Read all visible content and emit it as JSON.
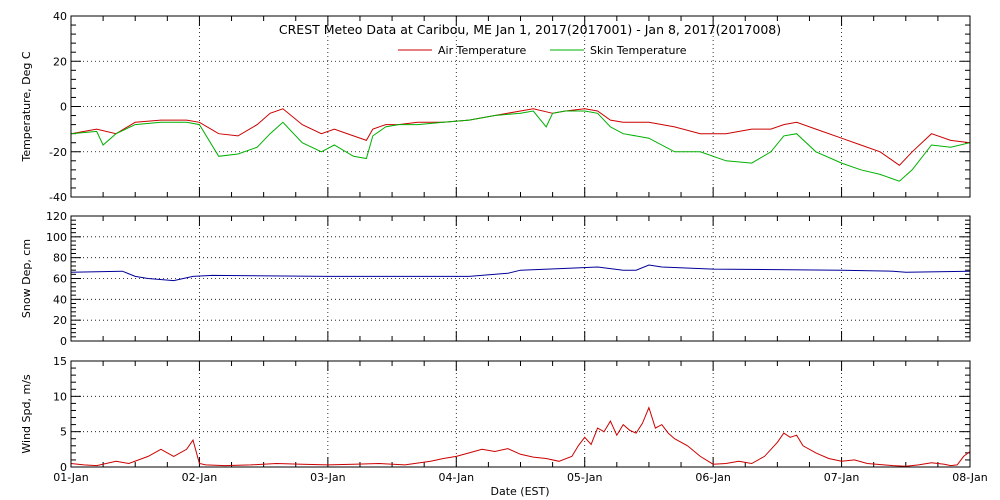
{
  "title": "CREST Meteo Data at Caribou, ME   Jan  1, 2017(2017001) - Jan  8, 2017(2017008)",
  "xlabel": "Date (EST)",
  "x_ticks": [
    "01-Jan",
    "02-Jan",
    "03-Jan",
    "04-Jan",
    "05-Jan",
    "06-Jan",
    "07-Jan",
    "08-Jan"
  ],
  "legend": [
    "Air Temperature",
    "Skin Temperature"
  ],
  "colors": {
    "air": "#cc0000",
    "skin": "#00b000",
    "snow": "#000099",
    "wind": "#cc0000"
  },
  "chart_data": [
    {
      "type": "line",
      "ylabel": "Temperature, Deg C",
      "x_unit": "day of Jan 2017",
      "xlim": [
        1,
        8
      ],
      "ylim": [
        -40,
        40
      ],
      "y_ticks": [
        -40,
        -20,
        0,
        20,
        40
      ],
      "grid": true,
      "legend_position": "top-center",
      "series": [
        {
          "name": "Air Temperature",
          "x": [
            1.0,
            1.2,
            1.35,
            1.5,
            1.7,
            1.9,
            2.0,
            2.15,
            2.3,
            2.45,
            2.55,
            2.65,
            2.8,
            2.95,
            3.05,
            3.2,
            3.3,
            3.35,
            3.45,
            3.55,
            3.7,
            3.9,
            4.1,
            4.3,
            4.5,
            4.6,
            4.75,
            4.85,
            5.0,
            5.1,
            5.2,
            5.3,
            5.5,
            5.7,
            5.9,
            6.1,
            6.3,
            6.45,
            6.55,
            6.65,
            6.8,
            7.0,
            7.15,
            7.3,
            7.45,
            7.55,
            7.7,
            7.85,
            8.0
          ],
          "y": [
            -12,
            -10,
            -12,
            -7,
            -6,
            -6,
            -7,
            -12,
            -13,
            -8,
            -3,
            -1,
            -8,
            -12,
            -10,
            -13,
            -15,
            -10,
            -8,
            -8,
            -7,
            -7,
            -6,
            -4,
            -2,
            -1,
            -3,
            -2,
            -1,
            -2,
            -6,
            -7,
            -7,
            -9,
            -12,
            -12,
            -10,
            -10,
            -8,
            -7,
            -10,
            -14,
            -17,
            -20,
            -26,
            -20,
            -12,
            -15,
            -16
          ]
        },
        {
          "name": "Skin Temperature",
          "x": [
            1.0,
            1.2,
            1.25,
            1.35,
            1.5,
            1.7,
            1.9,
            2.0,
            2.15,
            2.3,
            2.45,
            2.55,
            2.65,
            2.8,
            2.95,
            3.05,
            3.2,
            3.3,
            3.35,
            3.45,
            3.55,
            3.7,
            3.9,
            4.1,
            4.3,
            4.5,
            4.6,
            4.7,
            4.75,
            4.85,
            5.0,
            5.1,
            5.2,
            5.3,
            5.5,
            5.7,
            5.9,
            6.1,
            6.3,
            6.45,
            6.55,
            6.65,
            6.8,
            7.0,
            7.15,
            7.3,
            7.45,
            7.55,
            7.7,
            7.85,
            8.0
          ],
          "y": [
            -12,
            -11,
            -17,
            -12,
            -8,
            -7,
            -7,
            -8,
            -22,
            -21,
            -18,
            -12,
            -7,
            -16,
            -20,
            -17,
            -22,
            -23,
            -13,
            -9,
            -8,
            -8,
            -7,
            -6,
            -4,
            -3,
            -2,
            -9,
            -3,
            -2,
            -2,
            -3,
            -9,
            -12,
            -14,
            -20,
            -20,
            -24,
            -25,
            -20,
            -13,
            -12,
            -20,
            -25,
            -28,
            -30,
            -33,
            -28,
            -17,
            -18,
            -16
          ]
        }
      ]
    },
    {
      "type": "line",
      "ylabel": "Snow Dep, cm",
      "x_unit": "day of Jan 2017",
      "xlim": [
        1,
        8
      ],
      "ylim": [
        0,
        120
      ],
      "y_ticks": [
        0,
        20,
        40,
        60,
        80,
        100,
        120
      ],
      "grid": true,
      "series": [
        {
          "name": "Snow Depth",
          "x": [
            1.0,
            1.4,
            1.5,
            1.6,
            1.8,
            1.95,
            2.1,
            3.0,
            3.5,
            4.1,
            4.4,
            4.5,
            4.9,
            5.1,
            5.3,
            5.4,
            5.5,
            5.6,
            6.0,
            7.0,
            7.4,
            7.5,
            8.0
          ],
          "y": [
            66,
            67,
            62,
            60,
            58,
            62,
            63,
            62,
            62,
            62,
            65,
            68,
            70,
            71,
            68,
            68,
            73,
            71,
            69,
            68,
            67,
            66,
            67
          ]
        }
      ]
    },
    {
      "type": "line",
      "ylabel": "Wind Spd, m/s",
      "x_unit": "day of Jan 2017",
      "xlim": [
        1,
        8
      ],
      "ylim": [
        0,
        15
      ],
      "y_ticks": [
        0,
        5,
        10,
        15
      ],
      "grid": true,
      "series": [
        {
          "name": "Wind Speed",
          "x": [
            1.0,
            1.1,
            1.2,
            1.35,
            1.45,
            1.6,
            1.7,
            1.8,
            1.9,
            1.95,
            2.0,
            2.05,
            2.2,
            2.4,
            2.6,
            2.8,
            3.0,
            3.2,
            3.4,
            3.6,
            3.8,
            3.9,
            4.0,
            4.1,
            4.2,
            4.3,
            4.4,
            4.5,
            4.6,
            4.7,
            4.8,
            4.9,
            4.95,
            5.0,
            5.05,
            5.1,
            5.15,
            5.2,
            5.25,
            5.3,
            5.35,
            5.4,
            5.45,
            5.5,
            5.55,
            5.6,
            5.65,
            5.7,
            5.8,
            5.9,
            6.0,
            6.1,
            6.2,
            6.3,
            6.4,
            6.5,
            6.55,
            6.6,
            6.65,
            6.7,
            6.8,
            6.9,
            7.0,
            7.1,
            7.2,
            7.4,
            7.5,
            7.6,
            7.7,
            7.8,
            7.85,
            7.9,
            7.95,
            8.0
          ],
          "y": [
            0.5,
            0.3,
            0.2,
            0.8,
            0.5,
            1.5,
            2.5,
            1.5,
            2.5,
            3.8,
            0.5,
            0.3,
            0.2,
            0.3,
            0.5,
            0.4,
            0.3,
            0.4,
            0.5,
            0.3,
            0.8,
            1.2,
            1.5,
            2.0,
            2.5,
            2.2,
            2.6,
            1.8,
            1.4,
            1.2,
            0.8,
            1.5,
            3.0,
            4.2,
            3.2,
            5.5,
            5.0,
            6.5,
            4.5,
            6.0,
            5.2,
            4.8,
            6.2,
            8.4,
            5.5,
            6.0,
            4.8,
            4.0,
            3.0,
            1.5,
            0.4,
            0.5,
            0.8,
            0.5,
            1.5,
            3.5,
            4.8,
            4.2,
            4.5,
            3.0,
            2.0,
            1.2,
            0.8,
            1.0,
            0.5,
            0.2,
            0.1,
            0.3,
            0.6,
            0.4,
            0.2,
            0.3,
            1.5,
            2.2
          ]
        }
      ]
    }
  ]
}
